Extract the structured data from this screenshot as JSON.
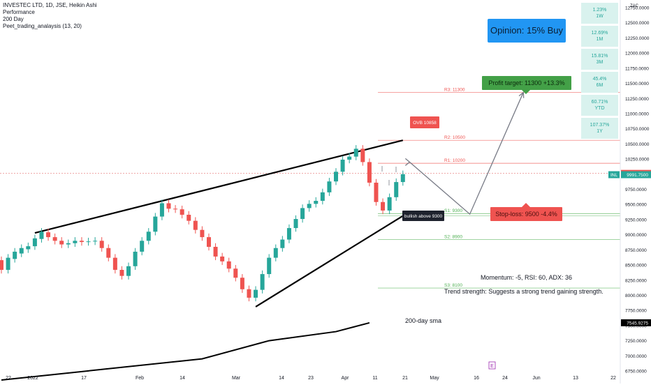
{
  "legend": {
    "symbol_line": "INVESTEC LTD, 1D, JSE, Heikin Ashi",
    "indicators": [
      "Performance",
      "200 Day",
      "Peet_trading_analaysis (13, 20)"
    ]
  },
  "opinion": "Opinion: 15% Buy",
  "currency_label": "ZAC",
  "performance": [
    {
      "value": "1.23%",
      "period": "1W"
    },
    {
      "value": "12.69%",
      "period": "1M"
    },
    {
      "value": "15.81%",
      "period": "3M"
    },
    {
      "value": "45.4%",
      "period": "6M"
    },
    {
      "value": "60.71%",
      "period": "YTD"
    },
    {
      "value": "107.37%",
      "period": "1Y"
    }
  ],
  "chart_data": {
    "type": "candlestick",
    "title": "INVESTEC LTD, 1D, JSE, Heikin Ashi",
    "ylim": [
      6750,
      12750
    ],
    "y_ticks": [
      6750,
      7000,
      7250,
      7500,
      7750,
      8000,
      8250,
      8500,
      8750,
      9000,
      9250,
      9500,
      9750,
      10000,
      10250,
      10500,
      10750,
      11000,
      11250,
      11500,
      11750,
      12000,
      12250,
      12500,
      12750
    ],
    "x_ticks": [
      "22",
      "2022",
      "17",
      "Feb",
      "14",
      "Mar",
      "14",
      "23",
      "Apr",
      "11",
      "21",
      "May",
      "16",
      "24",
      "Jun",
      "13",
      "22"
    ],
    "colors": {
      "up": "#26a69a",
      "down": "#ef5350",
      "line": "#000000"
    },
    "levels": [
      {
        "label": "R3: 11300",
        "value": 11350,
        "color": "#ef5350"
      },
      {
        "label": "R2: 10500",
        "value": 10560,
        "color": "#ef5350"
      },
      {
        "label": "R1: 10200",
        "value": 10180,
        "color": "#ef5350"
      },
      {
        "label": "S1: 9300",
        "value": 9350,
        "color": "#4caf50"
      },
      {
        "label": "S2: 8900",
        "value": 8920,
        "color": "#4caf50"
      },
      {
        "label": "S3: 8100",
        "value": 8120,
        "color": "#4caf50"
      }
    ],
    "price_tags": [
      {
        "label": "",
        "value": "10013.0000",
        "bg": "#ef5350",
        "fg": "#ffffff",
        "y": 10013
      },
      {
        "label": "INL",
        "value": "9991.7500",
        "bg": "#26a69a",
        "fg": "#ffffff",
        "y": 9991.75
      },
      {
        "label": "",
        "value": "7545.9275",
        "bg": "#000000",
        "fg": "#ffffff",
        "y": 7545.93
      }
    ],
    "annotations": {
      "ovb": "OVB 10858",
      "bullish": "bullish above 9300",
      "profit_target": "Profit target: 11300 +13.3%",
      "stop_loss": "Stop-loss: 9500 -4.4%",
      "sma_label": "200-day sma",
      "momentum": "Momentum: -5, RSI: 60, ADX: 36",
      "trend": "Trend strength: Suggests a strong trend gaining strength.",
      "earnings": "E"
    },
    "sma200": [
      [
        0,
        6600
      ],
      [
        30,
        6950
      ],
      [
        40,
        7250
      ],
      [
        50,
        7400
      ],
      [
        55,
        7545
      ]
    ],
    "projection": [
      [
        61,
        10200
      ],
      [
        70,
        9340
      ],
      [
        78,
        11350
      ]
    ],
    "channel": {
      "upper": [
        [
          5,
          9030
        ],
        [
          60,
          10560
        ]
      ],
      "lower": [
        [
          38,
          7810
        ],
        [
          61,
          9380
        ]
      ]
    },
    "candles": [
      [
        0,
        8580,
        8420
      ],
      [
        1,
        8420,
        8620
      ],
      [
        2,
        8600,
        8720
      ],
      [
        3,
        8690,
        8780
      ],
      [
        4,
        8760,
        8810
      ],
      [
        5,
        8810,
        8940
      ],
      [
        6,
        8930,
        9050
      ],
      [
        7,
        9040,
        8960
      ],
      [
        8,
        8960,
        8900
      ],
      [
        9,
        8900,
        8840
      ],
      [
        10,
        8840,
        8860
      ],
      [
        11,
        8860,
        8900
      ],
      [
        12,
        8900,
        8880
      ],
      [
        13,
        8880,
        8890
      ],
      [
        14,
        8890,
        8900
      ],
      [
        15,
        8900,
        8780
      ],
      [
        16,
        8780,
        8620
      ],
      [
        17,
        8620,
        8420
      ],
      [
        18,
        8420,
        8320
      ],
      [
        19,
        8320,
        8480
      ],
      [
        20,
        8480,
        8720
      ],
      [
        21,
        8720,
        8900
      ],
      [
        22,
        8900,
        9050
      ],
      [
        23,
        9050,
        9300
      ],
      [
        24,
        9300,
        9520
      ],
      [
        25,
        9520,
        9430
      ],
      [
        26,
        9430,
        9420
      ],
      [
        27,
        9420,
        9330
      ],
      [
        28,
        9330,
        9230
      ],
      [
        29,
        9230,
        9080
      ],
      [
        30,
        9080,
        8960
      ],
      [
        31,
        8960,
        8800
      ],
      [
        32,
        8800,
        8640
      ],
      [
        33,
        8640,
        8560
      ],
      [
        34,
        8560,
        8440
      ],
      [
        35,
        8440,
        8290
      ],
      [
        36,
        8290,
        8100
      ],
      [
        37,
        8100,
        7960
      ],
      [
        38,
        7960,
        8090
      ],
      [
        39,
        8090,
        8350
      ],
      [
        40,
        8350,
        8620
      ],
      [
        41,
        8620,
        8780
      ],
      [
        42,
        8780,
        8920
      ],
      [
        43,
        8920,
        9110
      ],
      [
        44,
        9110,
        9260
      ],
      [
        45,
        9260,
        9440
      ],
      [
        46,
        9440,
        9510
      ],
      [
        47,
        9510,
        9560
      ],
      [
        48,
        9560,
        9700
      ],
      [
        49,
        9700,
        9880
      ],
      [
        50,
        9880,
        10040
      ],
      [
        51,
        10040,
        10240
      ],
      [
        52,
        10240,
        10290
      ],
      [
        53,
        10290,
        10420
      ],
      [
        54,
        10420,
        10200
      ],
      [
        55,
        10200,
        9860
      ],
      [
        56,
        9860,
        9540
      ],
      [
        57,
        9540,
        9400
      ],
      [
        58,
        9400,
        9620
      ],
      [
        59,
        9620,
        9870
      ],
      [
        60,
        9870,
        10000
      ]
    ]
  }
}
